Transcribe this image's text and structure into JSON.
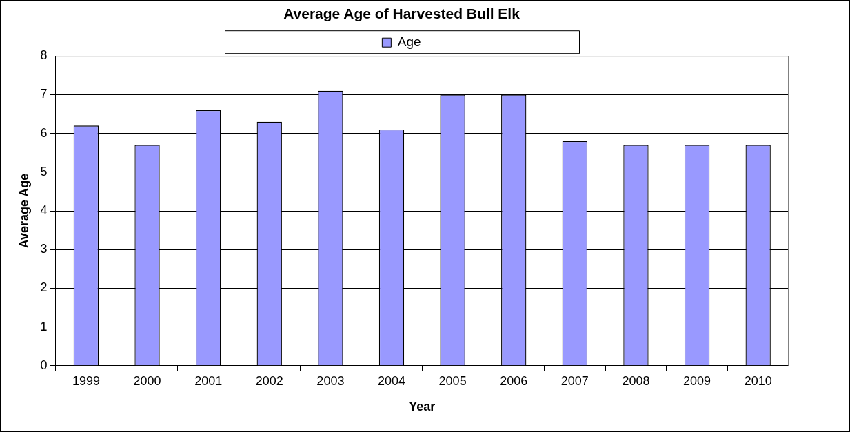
{
  "chart_data": {
    "type": "bar",
    "title": "Average Age of Harvested Bull Elk",
    "xlabel": "Year",
    "ylabel": "Average Age",
    "categories": [
      "1999",
      "2000",
      "2001",
      "2002",
      "2003",
      "2004",
      "2005",
      "2006",
      "2007",
      "2008",
      "2009",
      "2010"
    ],
    "series": [
      {
        "name": "Age",
        "color": "#9999ff",
        "values": [
          6.2,
          5.7,
          6.6,
          6.3,
          7.1,
          6.1,
          7.0,
          7.0,
          5.8,
          5.7,
          5.7,
          5.7
        ]
      }
    ],
    "ylim": [
      0,
      8
    ],
    "yticks": [
      0,
      1,
      2,
      3,
      4,
      5,
      6,
      7,
      8
    ],
    "grid": "y",
    "legend": "top"
  }
}
